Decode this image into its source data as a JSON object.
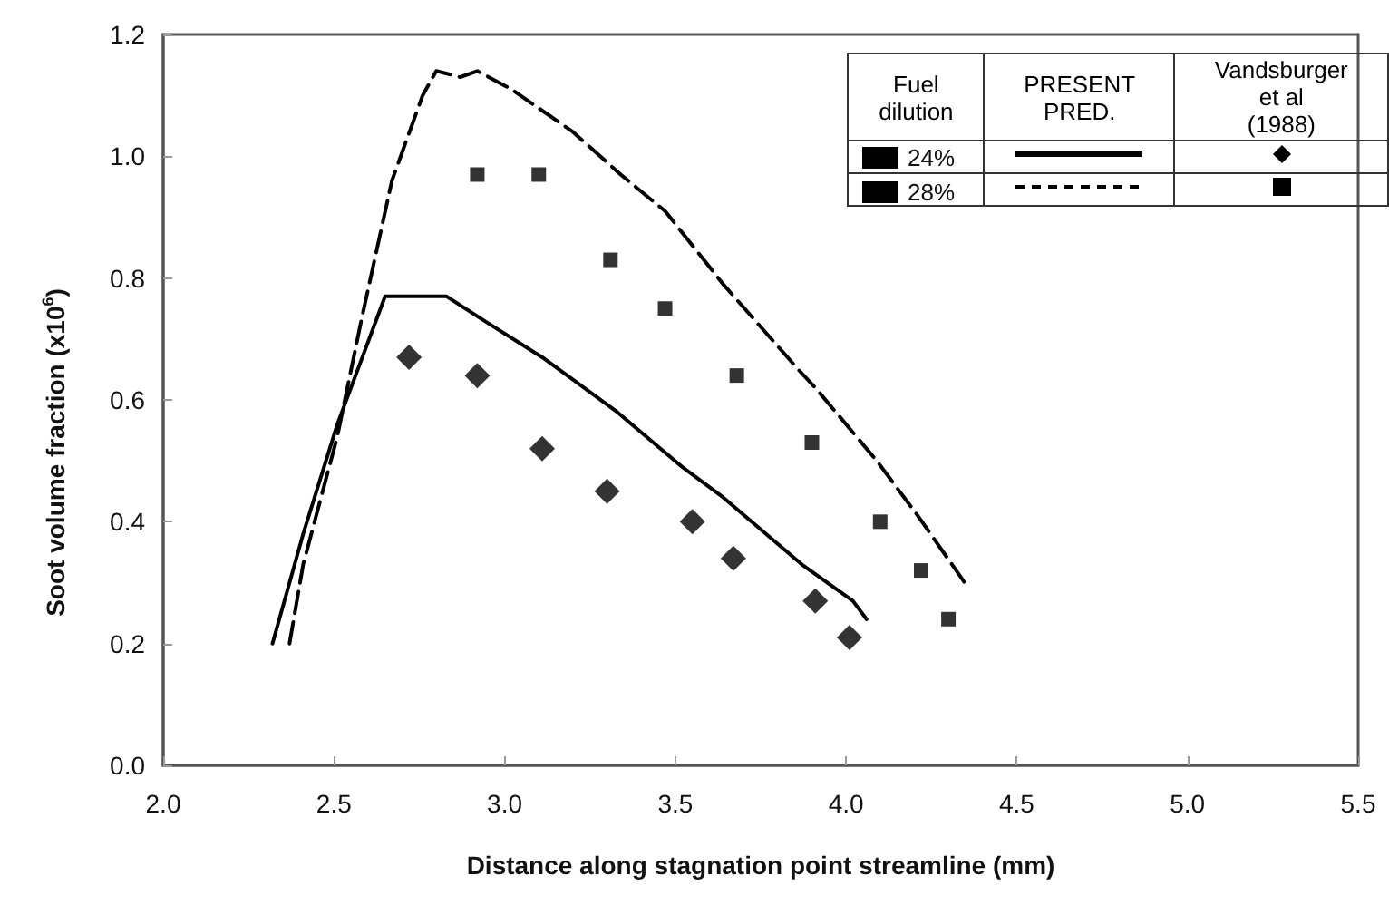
{
  "chart_data": {
    "type": "line",
    "xlabel": "Distance along stagnation point streamline (mm)",
    "ylabel": "Soot volume fraction (x10$^{6}$)",
    "xlim": [
      2.0,
      5.5
    ],
    "xticks": [
      {
        "value": 2.0,
        "label": "2.0"
      },
      {
        "value": 2.5,
        "label": "2.5"
      },
      {
        "value": 3.0,
        "label": "3.0"
      },
      {
        "value": 3.5,
        "label": "3.5"
      },
      {
        "value": 4.0,
        "label": "4.0"
      },
      {
        "value": 4.5,
        "label": "4.5"
      },
      {
        "value": 5.0,
        "label": "5.0"
      },
      {
        "value": 5.5,
        "label": "5.5"
      }
    ],
    "ylim": [
      0.0,
      1.2
    ],
    "yticks": [
      {
        "value": 0.0,
        "label": "0.0"
      },
      {
        "value": 0.2,
        "label": "0.2"
      },
      {
        "value": 0.4,
        "label": "0.4"
      },
      {
        "value": 0.6,
        "label": "0.6"
      },
      {
        "value": 0.8,
        "label": "0.8"
      },
      {
        "value": 1.0,
        "label": "1.0"
      },
      {
        "value": 1.2,
        "label": "1.2"
      }
    ],
    "grid": false,
    "legend": "top right",
    "legend_title": "Fuel dilution",
    "annotations": [
      "PRESENT PRED.",
      "Vandsburger et al (1988)"
    ],
    "series": [
      {
        "name": "24%",
        "line_style": "solid",
        "marker": "none",
        "color": "#000000",
        "x": [
          2.32,
          2.41,
          2.51,
          2.65,
          2.71,
          2.83,
          2.94,
          3.11,
          3.33,
          3.52,
          3.64,
          3.87,
          4.02,
          4.06
        ],
        "values": [
          0.2,
          0.38,
          0.56,
          0.77,
          0.77,
          0.77,
          0.73,
          0.67,
          0.58,
          0.49,
          0.44,
          0.33,
          0.27,
          0.24
        ]
      },
      {
        "name": "28%",
        "line_style": "dashed",
        "marker": "none",
        "color": "#000000",
        "x": [
          2.37,
          2.41,
          2.51,
          2.58,
          2.67,
          2.76,
          2.8,
          2.87,
          2.92,
          3.02,
          3.2,
          3.34,
          3.47,
          3.64,
          3.86,
          3.91,
          4.09,
          4.21,
          4.36
        ],
        "values": [
          0.2,
          0.33,
          0.54,
          0.73,
          0.96,
          1.1,
          1.14,
          1.13,
          1.14,
          1.11,
          1.04,
          0.97,
          0.91,
          0.79,
          0.65,
          0.62,
          0.5,
          0.41,
          0.29
        ]
      },
      {
        "type": "scatter",
        "marker": "diamond",
        "color": "#000000",
        "x": [
          2.72,
          2.92,
          3.11,
          3.3,
          3.55,
          3.67,
          3.91,
          4.01
        ],
        "values": [
          0.67,
          0.64,
          0.52,
          0.45,
          0.4,
          0.34,
          0.27,
          0.21
        ]
      },
      {
        "type": "scatter",
        "marker": "square",
        "color": "#000000",
        "x": [
          2.92,
          3.1,
          3.31,
          3.47,
          3.68,
          3.9,
          4.1,
          4.22,
          4.3
        ],
        "values": [
          0.97,
          0.97,
          0.83,
          0.75,
          0.64,
          0.53,
          0.4,
          0.32,
          0.24
        ]
      }
    ]
  }
}
